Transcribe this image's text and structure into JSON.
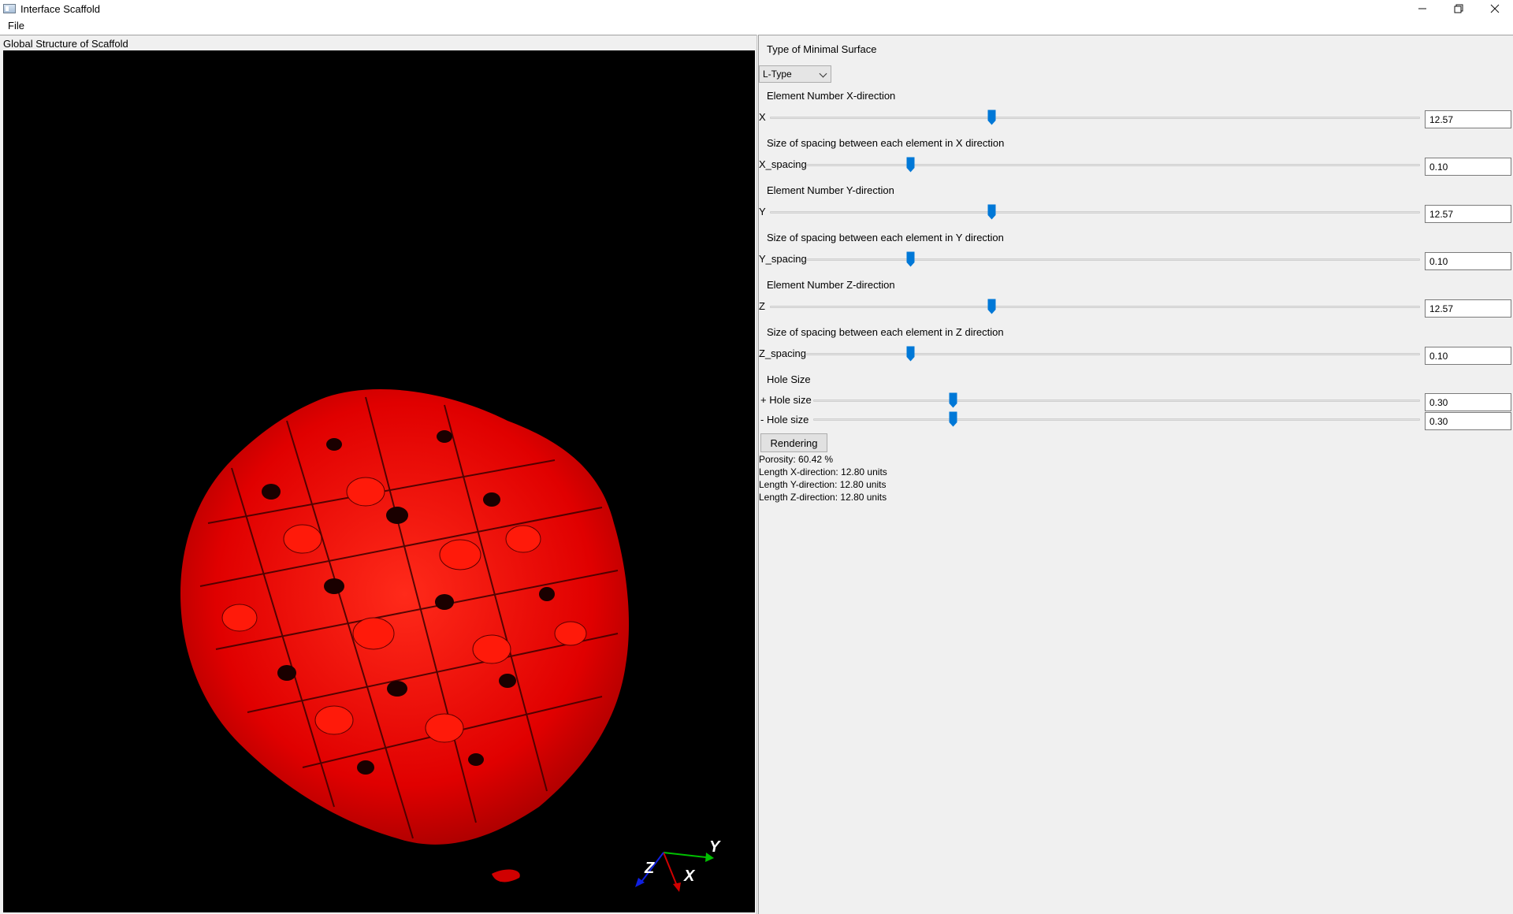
{
  "window": {
    "title": "Interface Scaffold",
    "controls": {
      "minimize": "—",
      "maximize": "❐",
      "close": "✕"
    }
  },
  "menu": {
    "file": "File"
  },
  "viewport": {
    "label": "Global Structure of Scaffold",
    "surface_color": "#ff0000",
    "background_color": "#000000",
    "axes": {
      "x": "X",
      "y": "Y",
      "z": "Z"
    }
  },
  "controls": {
    "surface_type": {
      "title": "Type of Minimal Surface",
      "selected": "L-Type"
    },
    "element_x": {
      "title": "Element Number X-direction",
      "label": "X",
      "value": "12.57",
      "slider_fraction": 0.34
    },
    "spacing_x": {
      "title": "Size of spacing between each element in X direction",
      "label": "X_spacing",
      "value": "0.10",
      "slider_fraction": 0.17
    },
    "element_y": {
      "title": "Element Number Y-direction",
      "label": "Y",
      "value": "12.57",
      "slider_fraction": 0.34
    },
    "spacing_y": {
      "title": "Size of spacing between each element in Y direction",
      "label": "Y_spacing",
      "value": "0.10",
      "slider_fraction": 0.17
    },
    "element_z": {
      "title": "Element Number Z-direction",
      "label": "Z",
      "value": "12.57",
      "slider_fraction": 0.34
    },
    "spacing_z": {
      "title": "Size of spacing between each element in Z direction",
      "label": "Z_spacing",
      "value": "0.10",
      "slider_fraction": 0.17
    },
    "hole_size": {
      "title": "Hole Size",
      "plus_label": "+ Hole size",
      "plus_value": "0.30",
      "plus_fraction": 0.23,
      "minus_label": "- Hole size",
      "minus_value": "0.30",
      "minus_fraction": 0.23
    },
    "render_button": "Rendering",
    "results": {
      "porosity": "Porosity: 60.42 %",
      "length_x": "Length X-direction: 12.80 units",
      "length_y": "Length Y-direction: 12.80 units",
      "length_z": "Length Z-direction: 12.80 units"
    },
    "accent_color": "#0078d7"
  }
}
